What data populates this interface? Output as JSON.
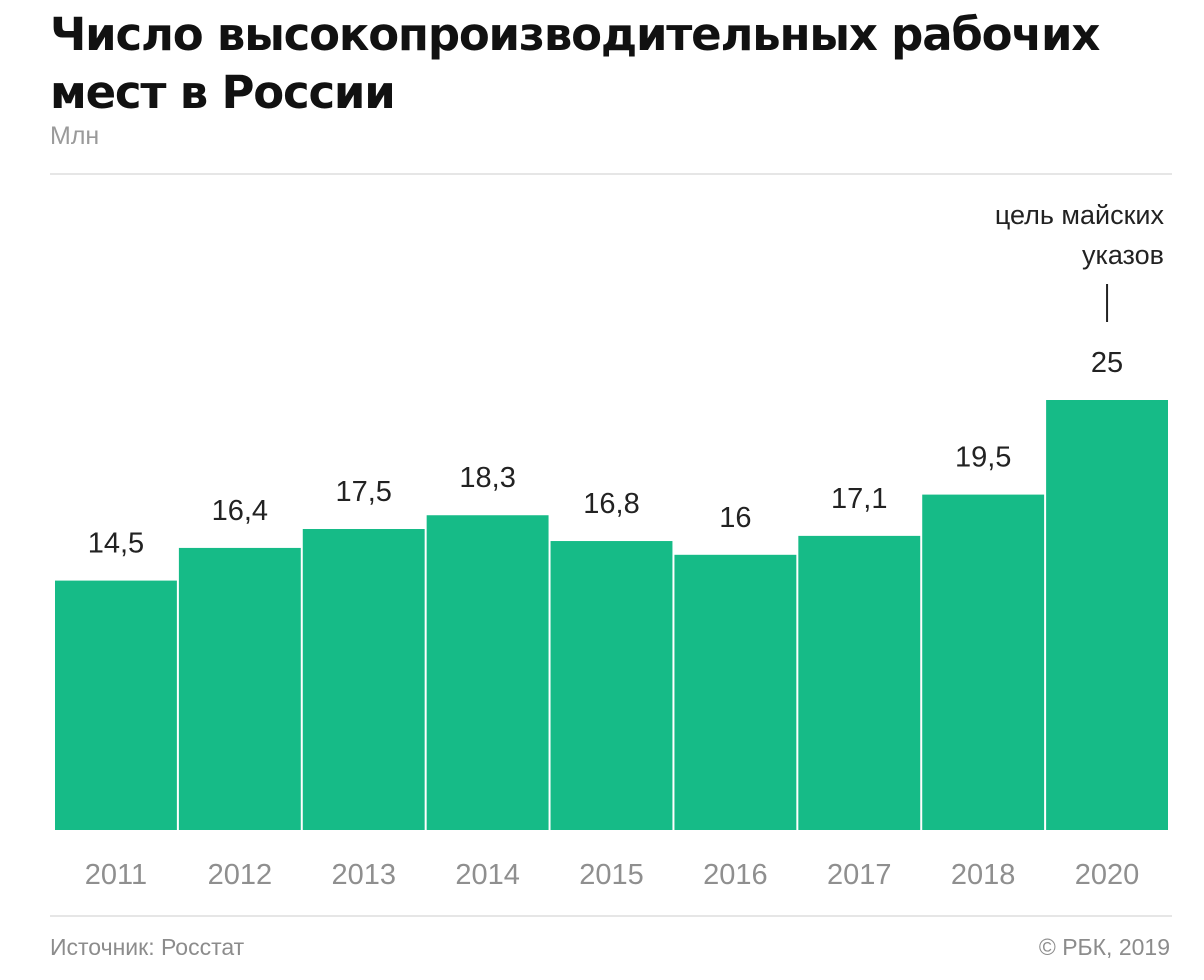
{
  "title": "Число высокопроизводительных рабочих мест в России",
  "unit": "Млн",
  "source": "Источник: Росстат",
  "copyright": "© РБК, 2019",
  "chart_data": {
    "type": "bar",
    "categories": [
      "2011",
      "2012",
      "2013",
      "2014",
      "2015",
      "2016",
      "2017",
      "2018",
      "2020"
    ],
    "values": [
      14.5,
      16.4,
      17.5,
      18.3,
      16.8,
      16,
      17.1,
      19.5,
      25
    ],
    "value_labels": [
      "14,5",
      "16,4",
      "17,5",
      "18,3",
      "16,8",
      "16",
      "17,1",
      "19,5",
      "25"
    ],
    "ylabel": "Млн",
    "ylim": [
      0,
      25
    ],
    "grid": false,
    "bar_color": "#16BB87",
    "annotation": {
      "category": "2020",
      "text_lines": [
        "цель майских",
        "указов"
      ]
    }
  }
}
